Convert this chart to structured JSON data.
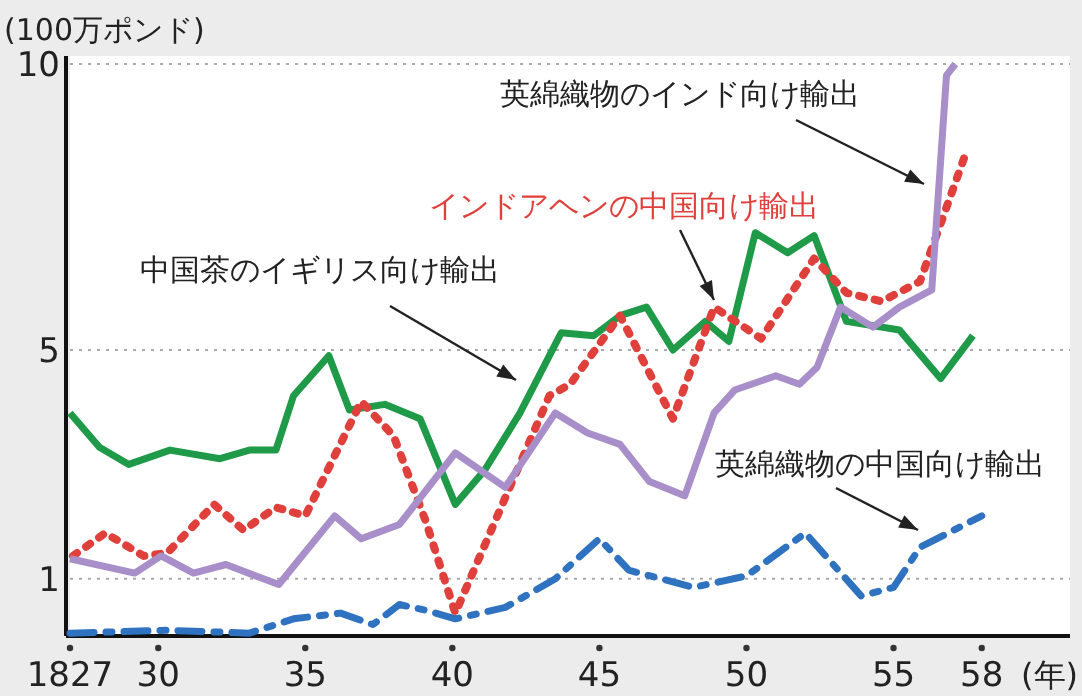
{
  "chart_data": {
    "type": "line",
    "ylabel": "(100万ポンド)",
    "xlabel": "(年)",
    "xlim": [
      1827,
      1861
    ],
    "ylim": [
      0,
      10
    ],
    "xticks": [
      {
        "value": 1827,
        "label": "1827"
      },
      {
        "value": 1830,
        "label": "30"
      },
      {
        "value": 1835,
        "label": "35"
      },
      {
        "value": 1840,
        "label": "40"
      },
      {
        "value": 1845,
        "label": "45"
      },
      {
        "value": 1850,
        "label": "50"
      },
      {
        "value": 1855,
        "label": "55"
      },
      {
        "value": 1858,
        "label": "58"
      }
    ],
    "yticks": [
      1,
      5,
      10
    ],
    "grid": "y",
    "legend": false,
    "marker": "none",
    "series": [
      {
        "name": "中国茶のイギリス向け輸出",
        "color": "#1f9a48",
        "line_style": "solid",
        "x": [
          1827,
          1828,
          1829,
          1830.4,
          1832.1,
          1833.1,
          1834,
          1834.6,
          1835.8,
          1836.5,
          1837.7,
          1838.9,
          1840.1,
          1841.1,
          1842.3,
          1843.7,
          1844.8,
          1845.7,
          1846.6,
          1847.5,
          1848.6,
          1849.4,
          1850.3,
          1851.4,
          1852.3,
          1853.4,
          1855.2,
          1856.6,
          1857.7
        ],
        "values": [
          3.9,
          3.3,
          3.0,
          3.25,
          3.1,
          3.25,
          3.25,
          4.2,
          4.9,
          3.95,
          4.05,
          3.8,
          2.3,
          2.9,
          3.9,
          5.3,
          5.25,
          5.6,
          5.75,
          5.0,
          5.5,
          5.15,
          7.05,
          6.7,
          7.0,
          5.5,
          5.35,
          4.5,
          5.25
        ]
      },
      {
        "name": "インドアヘンの中国向け輸出",
        "color": "#e0403c",
        "line_style": "dotted",
        "x": [
          1827.1,
          1828.2,
          1829.5,
          1830.3,
          1831.9,
          1832.9,
          1834,
          1835,
          1836.9,
          1838,
          1839.1,
          1840.1,
          1843.3,
          1844,
          1845.7,
          1847.5,
          1848.9,
          1850.5,
          1852.3,
          1853.4,
          1854.6,
          1855.9,
          1857.5
        ],
        "values": [
          1.4,
          1.8,
          1.4,
          1.45,
          2.3,
          1.85,
          2.25,
          2.1,
          4.1,
          3.5,
          2.0,
          0.4,
          4.2,
          4.4,
          5.6,
          3.8,
          5.75,
          5.2,
          6.6,
          6.0,
          5.85,
          6.2,
          8.5
        ]
      },
      {
        "name": "英綿織物のインド向け輸出",
        "color": "#a88fca",
        "line_style": "solid",
        "x": [
          1827,
          1829.2,
          1830.1,
          1831.2,
          1832.3,
          1834.1,
          1836,
          1836.9,
          1838.2,
          1840.1,
          1841.8,
          1843.5,
          1844.6,
          1845.7,
          1846.7,
          1847.9,
          1848.9,
          1849.6,
          1851,
          1851.8,
          1852.4,
          1853.2,
          1854.3,
          1855.2,
          1856.3,
          1856.8,
          1857.1
        ],
        "values": [
          1.35,
          1.1,
          1.4,
          1.1,
          1.25,
          0.9,
          2.1,
          1.7,
          1.95,
          3.2,
          2.6,
          3.9,
          3.55,
          3.35,
          2.7,
          2.45,
          3.9,
          4.3,
          4.55,
          4.4,
          4.7,
          5.75,
          5.4,
          5.75,
          6.05,
          9.8,
          10
        ]
      },
      {
        "name": "英綿織物の中国向け輸出",
        "color": "#2f72c0",
        "line_style": "dashed",
        "x": [
          1827,
          1830.3,
          1833.1,
          1834.6,
          1836.2,
          1837.3,
          1838.2,
          1839.1,
          1840.1,
          1841.8,
          1843.5,
          1845,
          1846,
          1848.2,
          1850,
          1852,
          1853.9,
          1855,
          1855.9,
          1858
        ],
        "values": [
          0.05,
          0.1,
          0.05,
          0.3,
          0.4,
          0.2,
          0.55,
          0.45,
          0.3,
          0.5,
          1.0,
          1.7,
          1.15,
          0.85,
          1.05,
          1.8,
          0.7,
          0.85,
          1.55,
          2.1
        ]
      }
    ]
  }
}
